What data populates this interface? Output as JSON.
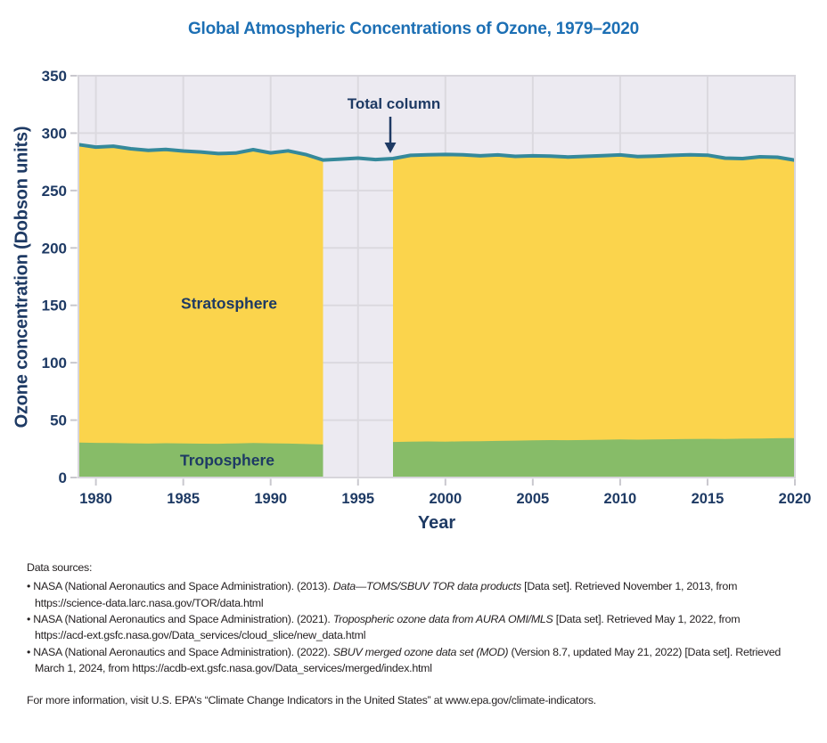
{
  "title": "Global Atmospheric Concentrations of Ozone, 1979–2020",
  "axes": {
    "y_label": "Ozone concentration (Dobson units)",
    "x_label": "Year"
  },
  "annotations": {
    "total_column": "Total column",
    "stratosphere": "Stratosphere",
    "troposphere": "Troposphere"
  },
  "colors": {
    "title_blue": "#1C6FB4",
    "label_navy": "#1E3A64",
    "total_column_line": "#35899B",
    "stratosphere_fill": "#FBD44C",
    "troposphere_fill": "#87BC68",
    "plot_background": "#ECEAF1",
    "gridline": "#DBD9DF",
    "axis_tick": "#C9C8CE",
    "footer_text": "#231F20"
  },
  "chart_data": {
    "type": "area",
    "title": "Global Atmospheric Concentrations of Ozone, 1979–2020",
    "xlabel": "Year",
    "ylabel": "Ozone concentration (Dobson units)",
    "xlim": [
      1979,
      2020
    ],
    "ylim": [
      0,
      350
    ],
    "xticks": [
      1980,
      1985,
      1990,
      1995,
      2000,
      2005,
      2010,
      2015,
      2020
    ],
    "yticks": [
      0,
      50,
      100,
      150,
      200,
      250,
      300,
      350
    ],
    "grid": true,
    "legend_position": "inline-annotations",
    "data_gap_years": [
      1994,
      1995,
      1996
    ],
    "units": "Dobson units",
    "x": [
      1979,
      1980,
      1981,
      1982,
      1983,
      1984,
      1985,
      1986,
      1987,
      1988,
      1989,
      1990,
      1991,
      1992,
      1993,
      1994,
      1995,
      1996,
      1997,
      1998,
      1999,
      2000,
      2001,
      2002,
      2003,
      2004,
      2005,
      2006,
      2007,
      2008,
      2009,
      2010,
      2011,
      2012,
      2013,
      2014,
      2015,
      2016,
      2017,
      2018,
      2019,
      2020
    ],
    "series": [
      {
        "name": "Total column",
        "type": "line",
        "color": "#35899B",
        "values": [
          290.0,
          287.8,
          288.6,
          286.4,
          285.0,
          285.8,
          284.4,
          283.6,
          282.2,
          282.6,
          285.6,
          282.8,
          284.6,
          281.4,
          276.6,
          277.4,
          278.2,
          277.0,
          277.8,
          280.6,
          281.2,
          281.4,
          281.2,
          280.2,
          281.0,
          279.8,
          280.2,
          280.0,
          279.2,
          279.8,
          280.4,
          281.0,
          279.6,
          280.0,
          280.6,
          281.2,
          280.8,
          278.2,
          277.8,
          279.4,
          279.0,
          276.4
        ]
      },
      {
        "name": "Stratosphere",
        "type": "stacked-area",
        "color": "#FBD44C",
        "values": [
          259.5,
          257.6,
          258.6,
          256.6,
          255.4,
          255.9,
          254.7,
          254.1,
          252.8,
          252.9,
          255.6,
          253.0,
          255.0,
          252.2,
          247.8,
          null,
          null,
          null,
          246.8,
          249.4,
          249.8,
          250.1,
          249.7,
          248.5,
          249.1,
          247.7,
          247.8,
          247.4,
          246.7,
          247.1,
          247.5,
          247.9,
          246.6,
          246.8,
          247.2,
          247.6,
          247.1,
          244.7,
          244.0,
          245.4,
          244.8,
          242.1
        ]
      },
      {
        "name": "Troposphere",
        "type": "stacked-area",
        "color": "#87BC68",
        "values": [
          30.5,
          30.2,
          30.0,
          29.8,
          29.6,
          29.9,
          29.7,
          29.5,
          29.4,
          29.7,
          30.0,
          29.8,
          29.6,
          29.2,
          28.8,
          null,
          null,
          null,
          31.0,
          31.2,
          31.4,
          31.3,
          31.5,
          31.7,
          31.9,
          32.1,
          32.4,
          32.6,
          32.5,
          32.7,
          32.9,
          33.1,
          33.0,
          33.2,
          33.4,
          33.6,
          33.7,
          33.5,
          33.8,
          34.0,
          34.2,
          34.3
        ]
      }
    ]
  },
  "footer": {
    "heading": "Data sources:",
    "bullet_char": "•",
    "sources": [
      [
        {
          "text": "NASA (National Aeronautics and Space Administration). (2013). ",
          "italic": false
        },
        {
          "text": "Data—TOMS/SBUV TOR data products",
          "italic": true
        },
        {
          "text": " [Data set]. Retrieved November 1, 2013, from https://science-data.larc.nasa.gov/TOR/data.html",
          "italic": false
        }
      ],
      [
        {
          "text": "NASA (National Aeronautics and Space Administration). (2021). ",
          "italic": false
        },
        {
          "text": "Tropospheric ozone data from AURA OMI/MLS",
          "italic": true
        },
        {
          "text": " [Data set]. Retrieved May 1, 2022, from https://acd-ext.gsfc.nasa.gov/Data_services/cloud_slice/new_data.html",
          "italic": false
        }
      ],
      [
        {
          "text": "NASA (National Aeronautics and Space Administration). (2022). ",
          "italic": false
        },
        {
          "text": "SBUV merged ozone data set (MOD)",
          "italic": true
        },
        {
          "text": " (Version 8.7, updated May 21, 2022) [Data set]. Retrieved March 1, 2024, from https://acdb-ext.gsfc.nasa.gov/Data_services/merged/index.html",
          "italic": false
        }
      ]
    ],
    "more_info": "For more information, visit U.S. EPA’s “Climate Change Indicators in the United States” at www.epa.gov/climate-indicators."
  }
}
